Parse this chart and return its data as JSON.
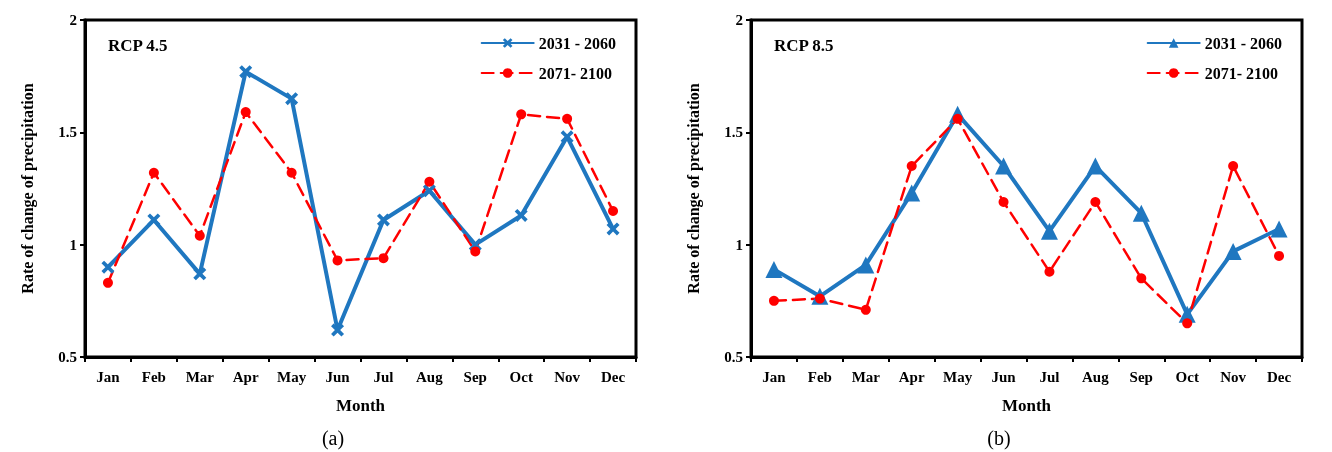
{
  "chart_data": [
    {
      "type": "line",
      "title": "RCP 4.5",
      "xlabel": "Month",
      "ylabel": "Rate of change of precipitation",
      "annotations": [
        "(a)"
      ],
      "categories": [
        "Jan",
        "Feb",
        "Mar",
        "Apr",
        "May",
        "Jun",
        "Jul",
        "Aug",
        "Sep",
        "Oct",
        "Nov",
        "Dec"
      ],
      "series": [
        {
          "name": "2031 - 2060",
          "color": "#1f77c0",
          "marker": "cross",
          "line_style": "solid",
          "values": [
            0.9,
            1.11,
            0.87,
            1.77,
            1.65,
            0.62,
            1.11,
            1.24,
            1.0,
            1.13,
            1.48,
            1.07
          ]
        },
        {
          "name": "2071- 2100",
          "color": "#ff0000",
          "marker": "circle",
          "line_style": "dashed",
          "values": [
            0.83,
            1.32,
            1.04,
            1.59,
            1.32,
            0.93,
            0.94,
            1.28,
            0.97,
            1.58,
            1.56,
            1.15
          ]
        }
      ],
      "ylim": [
        0.5,
        2
      ],
      "yticks": [
        0.5,
        1,
        1.5,
        2
      ],
      "grid": false,
      "legend": "top right"
    },
    {
      "type": "line",
      "title": "RCP 8.5",
      "xlabel": "Month",
      "ylabel": "Rate of change of precipitation",
      "annotations": [
        "(b)"
      ],
      "categories": [
        "Jan",
        "Feb",
        "Mar",
        "Apr",
        "May",
        "Jun",
        "Jul",
        "Aug",
        "Sep",
        "Oct",
        "Nov",
        "Dec"
      ],
      "series": [
        {
          "name": "2031 - 2060",
          "color": "#1f77c0",
          "marker": "triangle",
          "line_style": "solid",
          "values": [
            0.89,
            0.77,
            0.91,
            1.23,
            1.58,
            1.35,
            1.06,
            1.35,
            1.14,
            0.69,
            0.97,
            1.07
          ]
        },
        {
          "name": "2071- 2100",
          "color": "#ff0000",
          "marker": "circle",
          "line_style": "dashed",
          "values": [
            0.75,
            0.76,
            0.71,
            1.35,
            1.56,
            1.19,
            0.88,
            1.19,
            0.85,
            0.65,
            1.35,
            0.95
          ]
        }
      ],
      "ylim": [
        0.5,
        2
      ],
      "yticks": [
        0.5,
        1,
        1.5,
        2
      ],
      "grid": false,
      "legend": "top right"
    }
  ]
}
